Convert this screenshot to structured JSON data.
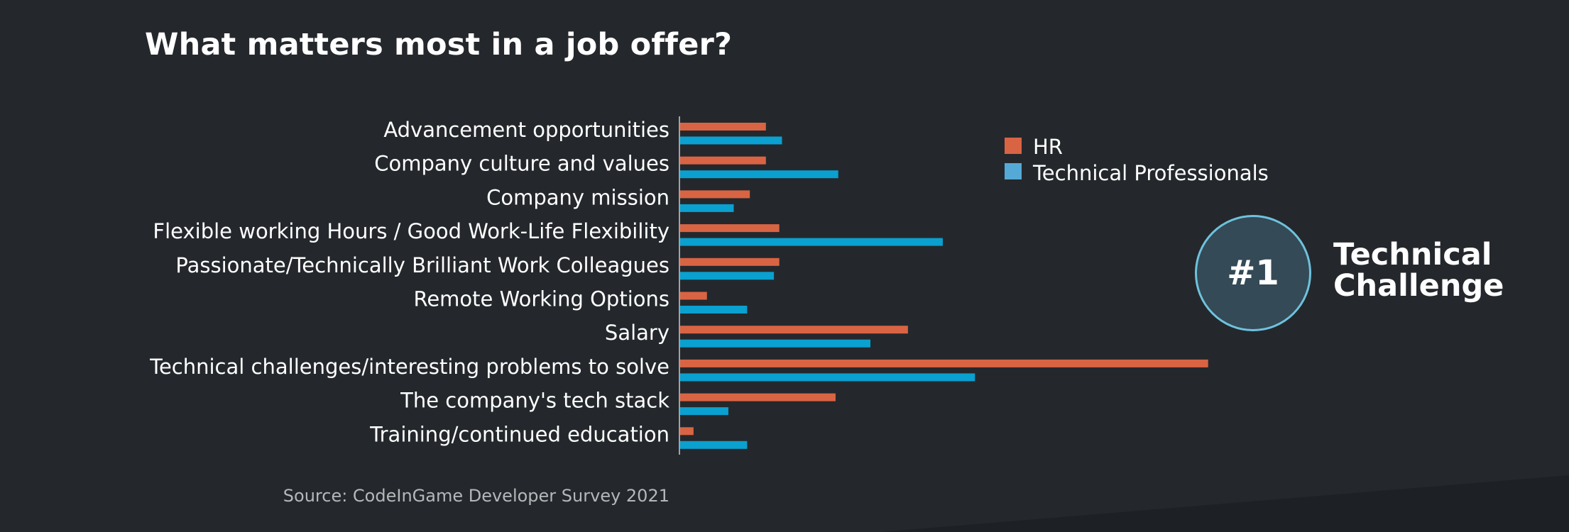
{
  "header": {
    "title": "What matters most in a job offer?"
  },
  "footer": {
    "source": "Source: CodeInGame Developer Survey 2021"
  },
  "badge": {
    "rank": "#1",
    "text": "Technical Challenge"
  },
  "colors": {
    "background": "#24282c",
    "hr": "#d96443",
    "technical": "#0aa0d0",
    "legend_technical": "#55a9d6",
    "badge_fill": "#344a56",
    "badge_ring": "#6fc2dd"
  },
  "chart_data": {
    "type": "bar",
    "orientation": "horizontal",
    "title": "What matters most in a job offer?",
    "categories": [
      "Advancement opportunities",
      "Company culture and values",
      "Company mission",
      "Flexible working Hours / Good Work-Life Flexibility",
      "Passionate/Technically Brilliant Work Colleagues",
      "Remote Working Options",
      "Salary",
      "Technical challenges/interesting problems to solve",
      "The company's tech stack",
      "Training/continued education"
    ],
    "series": [
      {
        "name": "HR",
        "color": "#d96443",
        "values": [
          16,
          16,
          13,
          18.5,
          18.5,
          5,
          42.5,
          98.5,
          29,
          2.5
        ]
      },
      {
        "name": "Technical Professionals",
        "color": "#0aa0d0",
        "values": [
          19,
          29.5,
          10,
          49,
          17.5,
          12.5,
          35.5,
          55,
          9,
          12.5
        ]
      }
    ],
    "xlim": [
      0,
      100
    ],
    "grid": false,
    "axes_visible": false,
    "legend": {
      "placement": "top-right",
      "entries": [
        "HR",
        "Technical Professionals"
      ]
    }
  }
}
